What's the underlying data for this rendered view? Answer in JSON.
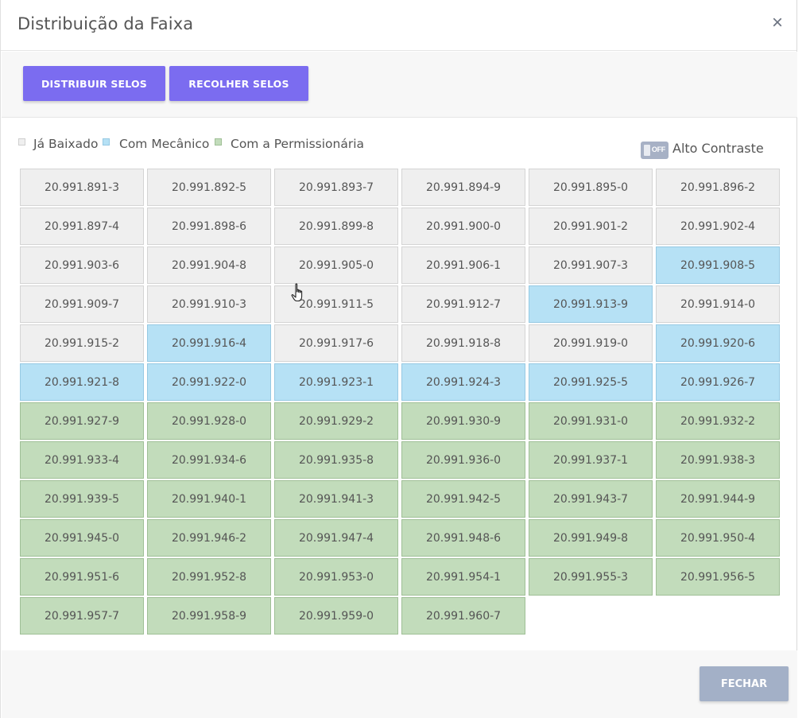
{
  "modal": {
    "title": "Distribuição da Faixa",
    "close_icon": "close-icon"
  },
  "toolbar": {
    "distribuir_label": "DISTRIBUIR SELOS",
    "recolher_label": "RECOLHER SELOS"
  },
  "legend": {
    "items": [
      {
        "label": "Já Baixado",
        "color": "#efefef"
      },
      {
        "label": "Com Mecânico",
        "color": "#b6e1f5"
      },
      {
        "label": "Com a Permissionária",
        "color": "#c2dcbb"
      }
    ]
  },
  "contrast_toggle": {
    "state_text": "OFF",
    "label": "Alto Contraste"
  },
  "colors": {
    "accent": "#7b6cf0",
    "baixado": "#efefef",
    "mecanico": "#b6e1f5",
    "permissionaria": "#c2dcbb",
    "disabled_button": "#a3b0c7"
  },
  "seals": [
    {
      "code": "20.991.891-3",
      "status": "baixado"
    },
    {
      "code": "20.991.892-5",
      "status": "baixado"
    },
    {
      "code": "20.991.893-7",
      "status": "baixado"
    },
    {
      "code": "20.991.894-9",
      "status": "baixado"
    },
    {
      "code": "20.991.895-0",
      "status": "baixado"
    },
    {
      "code": "20.991.896-2",
      "status": "baixado"
    },
    {
      "code": "20.991.897-4",
      "status": "baixado"
    },
    {
      "code": "20.991.898-6",
      "status": "baixado"
    },
    {
      "code": "20.991.899-8",
      "status": "baixado"
    },
    {
      "code": "20.991.900-0",
      "status": "baixado"
    },
    {
      "code": "20.991.901-2",
      "status": "baixado"
    },
    {
      "code": "20.991.902-4",
      "status": "baixado"
    },
    {
      "code": "20.991.903-6",
      "status": "baixado"
    },
    {
      "code": "20.991.904-8",
      "status": "baixado"
    },
    {
      "code": "20.991.905-0",
      "status": "baixado"
    },
    {
      "code": "20.991.906-1",
      "status": "baixado"
    },
    {
      "code": "20.991.907-3",
      "status": "baixado"
    },
    {
      "code": "20.991.908-5",
      "status": "mecanico"
    },
    {
      "code": "20.991.909-7",
      "status": "baixado"
    },
    {
      "code": "20.991.910-3",
      "status": "baixado"
    },
    {
      "code": "20.991.911-5",
      "status": "baixado"
    },
    {
      "code": "20.991.912-7",
      "status": "baixado"
    },
    {
      "code": "20.991.913-9",
      "status": "mecanico"
    },
    {
      "code": "20.991.914-0",
      "status": "baixado"
    },
    {
      "code": "20.991.915-2",
      "status": "baixado"
    },
    {
      "code": "20.991.916-4",
      "status": "mecanico"
    },
    {
      "code": "20.991.917-6",
      "status": "baixado"
    },
    {
      "code": "20.991.918-8",
      "status": "baixado"
    },
    {
      "code": "20.991.919-0",
      "status": "baixado"
    },
    {
      "code": "20.991.920-6",
      "status": "mecanico"
    },
    {
      "code": "20.991.921-8",
      "status": "mecanico"
    },
    {
      "code": "20.991.922-0",
      "status": "mecanico"
    },
    {
      "code": "20.991.923-1",
      "status": "mecanico"
    },
    {
      "code": "20.991.924-3",
      "status": "mecanico"
    },
    {
      "code": "20.991.925-5",
      "status": "mecanico"
    },
    {
      "code": "20.991.926-7",
      "status": "mecanico"
    },
    {
      "code": "20.991.927-9",
      "status": "permissionaria"
    },
    {
      "code": "20.991.928-0",
      "status": "permissionaria"
    },
    {
      "code": "20.991.929-2",
      "status": "permissionaria"
    },
    {
      "code": "20.991.930-9",
      "status": "permissionaria"
    },
    {
      "code": "20.991.931-0",
      "status": "permissionaria"
    },
    {
      "code": "20.991.932-2",
      "status": "permissionaria"
    },
    {
      "code": "20.991.933-4",
      "status": "permissionaria"
    },
    {
      "code": "20.991.934-6",
      "status": "permissionaria"
    },
    {
      "code": "20.991.935-8",
      "status": "permissionaria"
    },
    {
      "code": "20.991.936-0",
      "status": "permissionaria"
    },
    {
      "code": "20.991.937-1",
      "status": "permissionaria"
    },
    {
      "code": "20.991.938-3",
      "status": "permissionaria"
    },
    {
      "code": "20.991.939-5",
      "status": "permissionaria"
    },
    {
      "code": "20.991.940-1",
      "status": "permissionaria"
    },
    {
      "code": "20.991.941-3",
      "status": "permissionaria"
    },
    {
      "code": "20.991.942-5",
      "status": "permissionaria"
    },
    {
      "code": "20.991.943-7",
      "status": "permissionaria"
    },
    {
      "code": "20.991.944-9",
      "status": "permissionaria"
    },
    {
      "code": "20.991.945-0",
      "status": "permissionaria"
    },
    {
      "code": "20.991.946-2",
      "status": "permissionaria"
    },
    {
      "code": "20.991.947-4",
      "status": "permissionaria"
    },
    {
      "code": "20.991.948-6",
      "status": "permissionaria"
    },
    {
      "code": "20.991.949-8",
      "status": "permissionaria"
    },
    {
      "code": "20.991.950-4",
      "status": "permissionaria"
    },
    {
      "code": "20.991.951-6",
      "status": "permissionaria"
    },
    {
      "code": "20.991.952-8",
      "status": "permissionaria"
    },
    {
      "code": "20.991.953-0",
      "status": "permissionaria"
    },
    {
      "code": "20.991.954-1",
      "status": "permissionaria"
    },
    {
      "code": "20.991.955-3",
      "status": "permissionaria"
    },
    {
      "code": "20.991.956-5",
      "status": "permissionaria"
    },
    {
      "code": "20.991.957-7",
      "status": "permissionaria"
    },
    {
      "code": "20.991.958-9",
      "status": "permissionaria"
    },
    {
      "code": "20.991.959-0",
      "status": "permissionaria"
    },
    {
      "code": "20.991.960-7",
      "status": "permissionaria"
    }
  ],
  "footer": {
    "fechar_label": "FECHAR"
  }
}
